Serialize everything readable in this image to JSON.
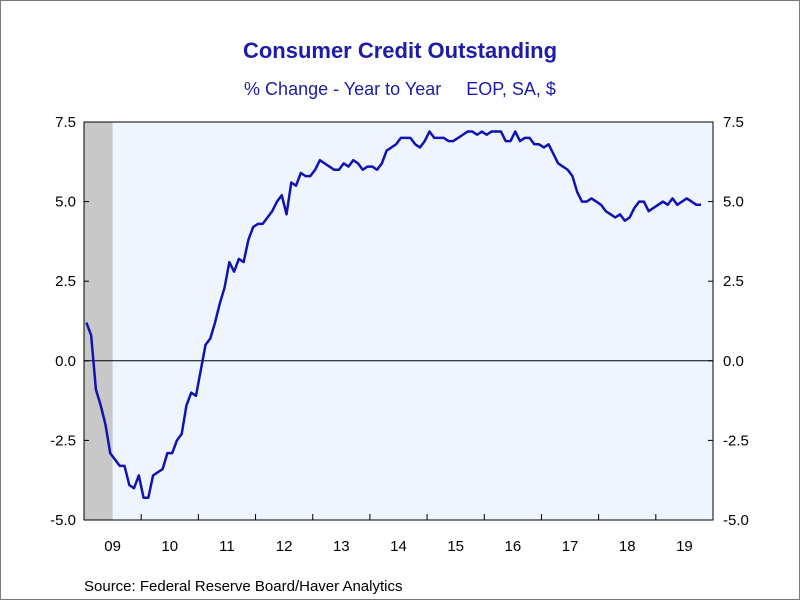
{
  "title": "Consumer Credit Outstanding",
  "subtitle": "% Change - Year to Year     EOP, SA, $",
  "source": "Source:  Federal Reserve Board/Haver Analytics",
  "colors": {
    "title": "#1c1ca8",
    "line": "#1212b0",
    "plot_background": "#eef5ff",
    "recession_shade": "#c8c8c8"
  },
  "chart_data": {
    "type": "line",
    "title": "Consumer Credit Outstanding",
    "subtitle": "% Change - Year to Year     EOP, SA, $",
    "ylim": [
      -5.0,
      7.5
    ],
    "y_ticks": [
      "7.5",
      "5.0",
      "2.5",
      "0.0",
      "-2.5",
      "-5.0"
    ],
    "x_ticks": [
      "09",
      "10",
      "11",
      "12",
      "13",
      "14",
      "15",
      "16",
      "17",
      "18",
      "19"
    ],
    "xlim": [
      "2009-01",
      "2019-12"
    ],
    "zero_line": true,
    "recession_shading": [
      "2009-01",
      "2009-06"
    ],
    "series": [
      {
        "x": [
          "2009-01",
          "2009-02",
          "2009-03",
          "2009-04",
          "2009-05",
          "2009-06",
          "2009-07",
          "2009-08",
          "2009-09",
          "2009-10",
          "2009-11",
          "2009-12",
          "2010-01",
          "2010-02",
          "2010-03",
          "2010-04",
          "2010-05",
          "2010-06",
          "2010-07",
          "2010-08",
          "2010-09",
          "2010-10",
          "2010-11",
          "2010-12",
          "2011-01",
          "2011-02",
          "2011-03",
          "2011-04",
          "2011-05",
          "2011-06",
          "2011-07",
          "2011-08",
          "2011-09",
          "2011-10",
          "2011-11",
          "2011-12",
          "2012-01",
          "2012-02",
          "2012-03",
          "2012-04",
          "2012-05",
          "2012-06",
          "2012-07",
          "2012-08",
          "2012-09",
          "2012-10",
          "2012-11",
          "2012-12",
          "2013-01",
          "2013-02",
          "2013-03",
          "2013-04",
          "2013-05",
          "2013-06",
          "2013-07",
          "2013-08",
          "2013-09",
          "2013-10",
          "2013-11",
          "2013-12",
          "2014-01",
          "2014-02",
          "2014-03",
          "2014-04",
          "2014-05",
          "2014-06",
          "2014-07",
          "2014-08",
          "2014-09",
          "2014-10",
          "2014-11",
          "2014-12",
          "2015-01",
          "2015-02",
          "2015-03",
          "2015-04",
          "2015-05",
          "2015-06",
          "2015-07",
          "2015-08",
          "2015-09",
          "2015-10",
          "2015-11",
          "2015-12",
          "2016-01",
          "2016-02",
          "2016-03",
          "2016-04",
          "2016-05",
          "2016-06",
          "2016-07",
          "2016-08",
          "2016-09",
          "2016-10",
          "2016-11",
          "2016-12",
          "2017-01",
          "2017-02",
          "2017-03",
          "2017-04",
          "2017-05",
          "2017-06",
          "2017-07",
          "2017-08",
          "2017-09",
          "2017-10",
          "2017-11",
          "2017-12",
          "2018-01",
          "2018-02",
          "2018-03",
          "2018-04",
          "2018-05",
          "2018-06",
          "2018-07",
          "2018-08",
          "2018-09",
          "2018-10",
          "2018-11",
          "2018-12",
          "2019-01",
          "2019-02",
          "2019-03",
          "2019-04",
          "2019-05",
          "2019-06",
          "2019-07",
          "2019-08",
          "2019-09",
          "2019-10"
        ],
        "values": [
          1.2,
          0.8,
          -0.9,
          -1.4,
          -2.0,
          -2.9,
          -3.1,
          -3.3,
          -3.3,
          -3.9,
          -4.0,
          -3.6,
          -4.3,
          -4.3,
          -3.6,
          -3.5,
          -3.4,
          -2.9,
          -2.9,
          -2.5,
          -2.3,
          -1.4,
          -1.0,
          -1.1,
          -0.3,
          0.5,
          0.7,
          1.2,
          1.8,
          2.3,
          3.1,
          2.8,
          3.2,
          3.1,
          3.8,
          4.2,
          4.3,
          4.3,
          4.5,
          4.7,
          5.0,
          5.2,
          4.6,
          5.6,
          5.5,
          5.9,
          5.8,
          5.8,
          6.0,
          6.3,
          6.2,
          6.1,
          6.0,
          6.0,
          6.2,
          6.1,
          6.3,
          6.2,
          6.0,
          6.1,
          6.1,
          6.0,
          6.2,
          6.6,
          6.7,
          6.8,
          7.0,
          7.0,
          7.0,
          6.8,
          6.7,
          6.9,
          7.2,
          7.0,
          7.0,
          7.0,
          6.9,
          6.9,
          7.0,
          7.1,
          7.2,
          7.2,
          7.1,
          7.2,
          7.1,
          7.2,
          7.2,
          7.2,
          6.9,
          6.9,
          7.2,
          6.9,
          7.0,
          7.0,
          6.8,
          6.8,
          6.7,
          6.8,
          6.5,
          6.2,
          6.1,
          6.0,
          5.8,
          5.3,
          5.0,
          5.0,
          5.1,
          5.0,
          4.9,
          4.7,
          4.6,
          4.5,
          4.6,
          4.4,
          4.5,
          4.8,
          5.0,
          5.0,
          4.7,
          4.8,
          4.9,
          5.0,
          4.9,
          5.1,
          4.9,
          5.0,
          5.1,
          5.0,
          4.9,
          4.9
        ]
      }
    ]
  }
}
